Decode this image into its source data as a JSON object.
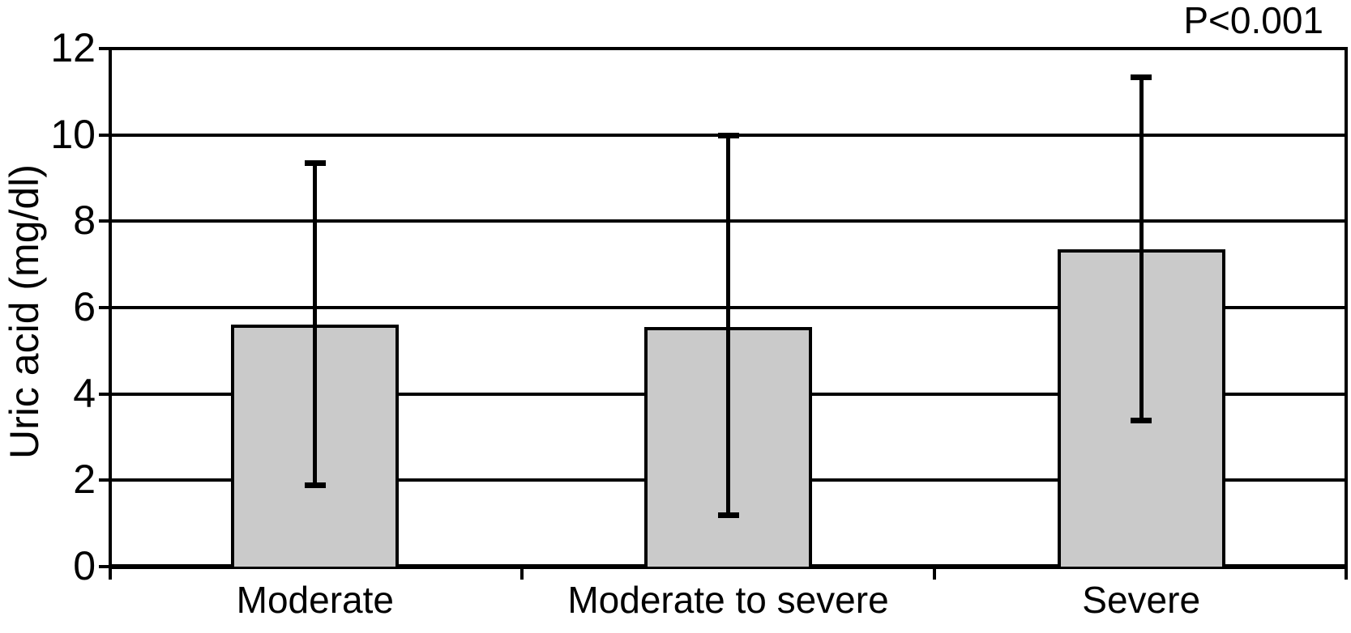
{
  "chart_data": {
    "type": "bar",
    "title": "",
    "xlabel": "",
    "ylabel": "Uric acid (mg/dl)",
    "annotation": "P<0.001",
    "categories": [
      "Moderate",
      "Moderate to severe",
      "Severe"
    ],
    "values": [
      5.6,
      5.55,
      7.35
    ],
    "error_low": [
      1.9,
      1.2,
      3.4
    ],
    "error_high": [
      9.35,
      10.0,
      11.35
    ],
    "ylim": [
      0,
      12
    ],
    "yticks": [
      0,
      2,
      4,
      6,
      8,
      10,
      12
    ],
    "grid": true,
    "legend": "none",
    "bar_color": "#cacaca",
    "line_color": "#000000",
    "background_color": "#ffffff"
  }
}
